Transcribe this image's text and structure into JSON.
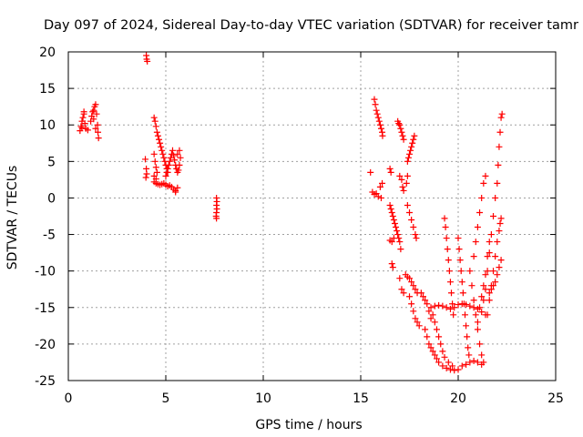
{
  "chart_data": {
    "type": "scatter",
    "title": "Day 097 of 2024, Sidereal Day-to-day VTEC variation (SDTVAR) for receiver tamr",
    "xlabel": "GPS time / hours",
    "ylabel": "SDTVAR / TECUs",
    "xlim": [
      0,
      25
    ],
    "ylim": [
      -25,
      20
    ],
    "x_ticks": [
      0,
      5,
      10,
      15,
      20,
      25
    ],
    "y_ticks": [
      -25,
      -20,
      -15,
      -10,
      -5,
      0,
      5,
      10,
      15,
      20
    ],
    "grid": true,
    "marker": "+",
    "marker_color": "#ff0000",
    "series": [
      {
        "points": [
          [
            0.6,
            9.2
          ],
          [
            0.65,
            9.8
          ],
          [
            0.7,
            10.5
          ],
          [
            0.75,
            11.0
          ],
          [
            0.8,
            11.5
          ],
          [
            0.85,
            10.2
          ],
          [
            0.9,
            9.5
          ],
          [
            1.0,
            9.3
          ],
          [
            0.7,
            9.6
          ],
          [
            0.8,
            11.8
          ],
          [
            1.15,
            10.5
          ],
          [
            1.2,
            11.2
          ],
          [
            1.25,
            11.8
          ],
          [
            1.3,
            12.0
          ],
          [
            1.35,
            12.5
          ],
          [
            1.4,
            12.8
          ],
          [
            1.45,
            11.5
          ],
          [
            1.5,
            10.0
          ],
          [
            1.52,
            9.0
          ],
          [
            1.55,
            8.2
          ],
          [
            1.4,
            9.5
          ],
          [
            1.3,
            10.8
          ],
          [
            4.0,
            19.5
          ],
          [
            4.02,
            19.0
          ],
          [
            4.05,
            18.7
          ],
          [
            3.95,
            5.3
          ],
          [
            4.0,
            4.0
          ],
          [
            4.02,
            3.3
          ],
          [
            3.98,
            2.8
          ],
          [
            4.4,
            11.0
          ],
          [
            4.45,
            10.5
          ],
          [
            4.5,
            9.8
          ],
          [
            4.55,
            9.0
          ],
          [
            4.6,
            8.5
          ],
          [
            4.65,
            8.0
          ],
          [
            4.7,
            7.5
          ],
          [
            4.75,
            7.0
          ],
          [
            4.8,
            6.5
          ],
          [
            4.85,
            6.0
          ],
          [
            4.9,
            5.5
          ],
          [
            4.95,
            5.0
          ],
          [
            5.0,
            4.5
          ],
          [
            5.05,
            4.0
          ],
          [
            5.1,
            3.5
          ],
          [
            4.4,
            2.2
          ],
          [
            4.5,
            2.0
          ],
          [
            4.6,
            1.9
          ],
          [
            4.7,
            1.8
          ],
          [
            4.8,
            1.9
          ],
          [
            4.9,
            2.0
          ],
          [
            5.0,
            1.8
          ],
          [
            5.1,
            1.6
          ],
          [
            5.2,
            1.7
          ],
          [
            5.3,
            1.5
          ],
          [
            5.4,
            1.2
          ],
          [
            5.5,
            1.0
          ],
          [
            5.6,
            1.4
          ],
          [
            5.5,
            0.8
          ],
          [
            5.0,
            3.0
          ],
          [
            5.05,
            3.5
          ],
          [
            5.1,
            4.0
          ],
          [
            5.15,
            4.5
          ],
          [
            5.2,
            5.0
          ],
          [
            5.25,
            5.5
          ],
          [
            5.3,
            6.0
          ],
          [
            5.35,
            6.5
          ],
          [
            5.4,
            5.8
          ],
          [
            5.45,
            5.2
          ],
          [
            5.5,
            4.5
          ],
          [
            5.55,
            4.0
          ],
          [
            5.6,
            3.5
          ],
          [
            5.65,
            3.8
          ],
          [
            5.7,
            4.5
          ],
          [
            5.75,
            5.5
          ],
          [
            5.7,
            6.5
          ],
          [
            5.6,
            6.0
          ],
          [
            4.4,
            6.0
          ],
          [
            4.45,
            5.0
          ],
          [
            4.5,
            4.2
          ],
          [
            4.55,
            3.5
          ],
          [
            4.4,
            3.0
          ],
          [
            4.5,
            2.6
          ],
          [
            7.6,
            0.0
          ],
          [
            7.62,
            -0.5
          ],
          [
            7.6,
            -1.0
          ],
          [
            7.62,
            -1.5
          ],
          [
            7.6,
            -2.0
          ],
          [
            7.58,
            -2.5
          ],
          [
            7.6,
            -2.8
          ],
          [
            15.5,
            3.5
          ],
          [
            15.7,
            13.5
          ],
          [
            15.75,
            12.8
          ],
          [
            15.8,
            12.0
          ],
          [
            15.85,
            11.5
          ],
          [
            15.9,
            11.0
          ],
          [
            15.95,
            10.5
          ],
          [
            16.0,
            10.0
          ],
          [
            16.05,
            9.5
          ],
          [
            16.1,
            9.0
          ],
          [
            16.12,
            8.5
          ],
          [
            15.6,
            0.8
          ],
          [
            15.7,
            0.5
          ],
          [
            15.8,
            0.6
          ],
          [
            15.9,
            0.2
          ],
          [
            16.0,
            1.5
          ],
          [
            16.1,
            2.0
          ],
          [
            16.05,
            0.0
          ],
          [
            16.5,
            4.0
          ],
          [
            16.55,
            3.5
          ],
          [
            16.5,
            -5.8
          ],
          [
            16.6,
            -6.0
          ],
          [
            16.7,
            -5.5
          ],
          [
            16.6,
            -9.0
          ],
          [
            16.65,
            -9.5
          ],
          [
            16.5,
            -1.0
          ],
          [
            16.55,
            -1.5
          ],
          [
            16.6,
            -2.0
          ],
          [
            16.65,
            -2.5
          ],
          [
            16.7,
            -3.0
          ],
          [
            16.75,
            -3.5
          ],
          [
            16.8,
            -4.0
          ],
          [
            16.85,
            -4.5
          ],
          [
            16.9,
            -5.0
          ],
          [
            16.95,
            -5.5
          ],
          [
            17.0,
            -6.0
          ],
          [
            17.05,
            -7.0
          ],
          [
            16.9,
            10.5
          ],
          [
            16.95,
            10.2
          ],
          [
            17.0,
            10.0
          ],
          [
            17.05,
            9.5
          ],
          [
            17.1,
            9.0
          ],
          [
            17.15,
            8.5
          ],
          [
            17.2,
            8.0
          ],
          [
            17.0,
            3.0
          ],
          [
            17.1,
            2.5
          ],
          [
            17.15,
            1.5
          ],
          [
            17.2,
            1.0
          ],
          [
            17.0,
            -11.0
          ],
          [
            17.1,
            -12.5
          ],
          [
            17.2,
            -13.0
          ],
          [
            17.4,
            5.0
          ],
          [
            17.45,
            5.5
          ],
          [
            17.5,
            6.0
          ],
          [
            17.55,
            6.5
          ],
          [
            17.6,
            7.0
          ],
          [
            17.65,
            7.5
          ],
          [
            17.7,
            8.0
          ],
          [
            17.75,
            8.5
          ],
          [
            17.4,
            3.0
          ],
          [
            17.35,
            2.0
          ],
          [
            17.4,
            -1.0
          ],
          [
            17.5,
            -2.0
          ],
          [
            17.6,
            -3.0
          ],
          [
            17.7,
            -4.0
          ],
          [
            17.8,
            -5.0
          ],
          [
            17.85,
            -5.5
          ],
          [
            17.3,
            -10.5
          ],
          [
            17.4,
            -10.8
          ],
          [
            17.5,
            -11.0
          ],
          [
            17.6,
            -11.5
          ],
          [
            17.7,
            -12.0
          ],
          [
            17.8,
            -12.5
          ],
          [
            17.9,
            -13.0
          ],
          [
            17.5,
            -13.5
          ],
          [
            17.6,
            -14.5
          ],
          [
            17.7,
            -15.5
          ],
          [
            17.8,
            -16.5
          ],
          [
            17.9,
            -17.0
          ],
          [
            18.0,
            -17.5
          ],
          [
            18.1,
            -13.0
          ],
          [
            18.2,
            -13.5
          ],
          [
            18.3,
            -14.0
          ],
          [
            18.4,
            -14.5
          ],
          [
            18.5,
            -15.5
          ],
          [
            18.6,
            -16.5
          ],
          [
            18.3,
            -18.0
          ],
          [
            18.4,
            -19.0
          ],
          [
            18.5,
            -20.0
          ],
          [
            18.6,
            -20.5
          ],
          [
            18.7,
            -21.0
          ],
          [
            18.8,
            -21.5
          ],
          [
            18.9,
            -22.0
          ],
          [
            19.0,
            -22.5
          ],
          [
            19.2,
            -23.0
          ],
          [
            19.4,
            -23.3
          ],
          [
            19.6,
            -23.5
          ],
          [
            19.8,
            -23.6
          ],
          [
            20.0,
            -23.5
          ],
          [
            20.2,
            -23.0
          ],
          [
            20.4,
            -22.8
          ],
          [
            20.6,
            -22.5
          ],
          [
            20.8,
            -22.3
          ],
          [
            21.0,
            -22.5
          ],
          [
            21.2,
            -22.8
          ],
          [
            18.6,
            -15.0
          ],
          [
            18.8,
            -14.8
          ],
          [
            19.0,
            -14.7
          ],
          [
            19.2,
            -14.8
          ],
          [
            19.4,
            -15.0
          ],
          [
            19.6,
            -15.2
          ],
          [
            19.8,
            -15.0
          ],
          [
            20.0,
            -14.6
          ],
          [
            20.2,
            -14.5
          ],
          [
            20.4,
            -14.6
          ],
          [
            20.6,
            -14.8
          ],
          [
            20.8,
            -15.0
          ],
          [
            21.0,
            -15.2
          ],
          [
            21.2,
            -15.6
          ],
          [
            21.4,
            -16.0
          ],
          [
            18.7,
            -16.0
          ],
          [
            18.8,
            -17.0
          ],
          [
            18.9,
            -18.0
          ],
          [
            19.0,
            -19.0
          ],
          [
            19.1,
            -20.0
          ],
          [
            19.2,
            -21.0
          ],
          [
            19.3,
            -21.8
          ],
          [
            19.5,
            -22.5
          ],
          [
            19.7,
            -23.0
          ],
          [
            19.3,
            -2.8
          ],
          [
            19.35,
            -4.0
          ],
          [
            19.4,
            -5.5
          ],
          [
            19.45,
            -7.0
          ],
          [
            19.5,
            -8.5
          ],
          [
            19.55,
            -10.0
          ],
          [
            19.6,
            -11.5
          ],
          [
            19.65,
            -13.0
          ],
          [
            19.7,
            -14.5
          ],
          [
            19.75,
            -16.0
          ],
          [
            20.0,
            -5.5
          ],
          [
            20.05,
            -7.0
          ],
          [
            20.1,
            -8.5
          ],
          [
            20.15,
            -10.0
          ],
          [
            20.2,
            -11.5
          ],
          [
            20.25,
            -13.0
          ],
          [
            20.3,
            -14.5
          ],
          [
            20.35,
            -16.0
          ],
          [
            20.4,
            -17.5
          ],
          [
            20.45,
            -19.0
          ],
          [
            20.5,
            -20.5
          ],
          [
            20.55,
            -21.5
          ],
          [
            20.6,
            -10.0
          ],
          [
            20.7,
            -12.0
          ],
          [
            20.8,
            -14.0
          ],
          [
            20.9,
            -16.0
          ],
          [
            21.0,
            -18.0
          ],
          [
            21.1,
            -20.0
          ],
          [
            21.2,
            -21.5
          ],
          [
            21.3,
            -22.5
          ],
          [
            20.8,
            -8.0
          ],
          [
            20.9,
            -6.0
          ],
          [
            21.0,
            -4.0
          ],
          [
            21.1,
            -2.0
          ],
          [
            21.2,
            0.0
          ],
          [
            21.3,
            2.0
          ],
          [
            21.4,
            3.0
          ],
          [
            21.3,
            -14.0
          ],
          [
            21.4,
            -12.5
          ],
          [
            21.5,
            -10.0
          ],
          [
            21.6,
            -7.5
          ],
          [
            21.7,
            -5.0
          ],
          [
            21.8,
            -2.5
          ],
          [
            21.9,
            0.0
          ],
          [
            22.0,
            2.0
          ],
          [
            22.05,
            4.5
          ],
          [
            22.1,
            7.0
          ],
          [
            22.15,
            9.0
          ],
          [
            22.2,
            11.0
          ],
          [
            22.25,
            11.5
          ],
          [
            21.5,
            -16.0
          ],
          [
            21.6,
            -14.0
          ],
          [
            21.7,
            -12.0
          ],
          [
            21.8,
            -10.0
          ],
          [
            21.9,
            -8.0
          ],
          [
            22.0,
            -6.0
          ],
          [
            22.1,
            -4.5
          ],
          [
            22.15,
            -3.5
          ],
          [
            22.2,
            -2.8
          ],
          [
            21.6,
            -13.0
          ],
          [
            21.7,
            -12.5
          ],
          [
            21.8,
            -12.0
          ],
          [
            21.9,
            -11.5
          ],
          [
            22.0,
            -10.5
          ],
          [
            22.1,
            -9.5
          ],
          [
            22.2,
            -8.5
          ],
          [
            21.0,
            -17.0
          ],
          [
            21.1,
            -15.0
          ],
          [
            21.2,
            -13.5
          ],
          [
            21.3,
            -12.0
          ],
          [
            21.4,
            -10.5
          ],
          [
            21.5,
            -8.0
          ],
          [
            21.6,
            -6.0
          ]
        ]
      }
    ]
  }
}
